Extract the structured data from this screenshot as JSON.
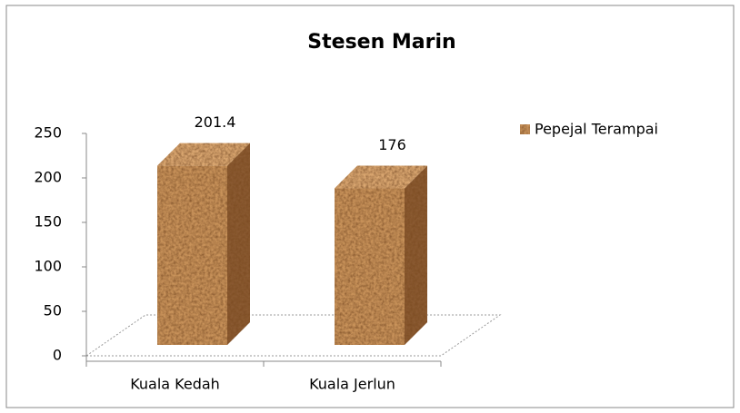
{
  "chart_data": {
    "type": "bar3d",
    "title": "Stesen Marin",
    "categories": [
      "Kuala Kedah",
      "Kuala Jerlun"
    ],
    "series": [
      {
        "name": "Pepejal Terampai",
        "color": "#c8925a",
        "values": [
          201.4,
          176
        ]
      }
    ],
    "ylim": [
      0,
      250
    ],
    "yticks": [
      0,
      50,
      100,
      150,
      200,
      250
    ],
    "legend": "right"
  }
}
